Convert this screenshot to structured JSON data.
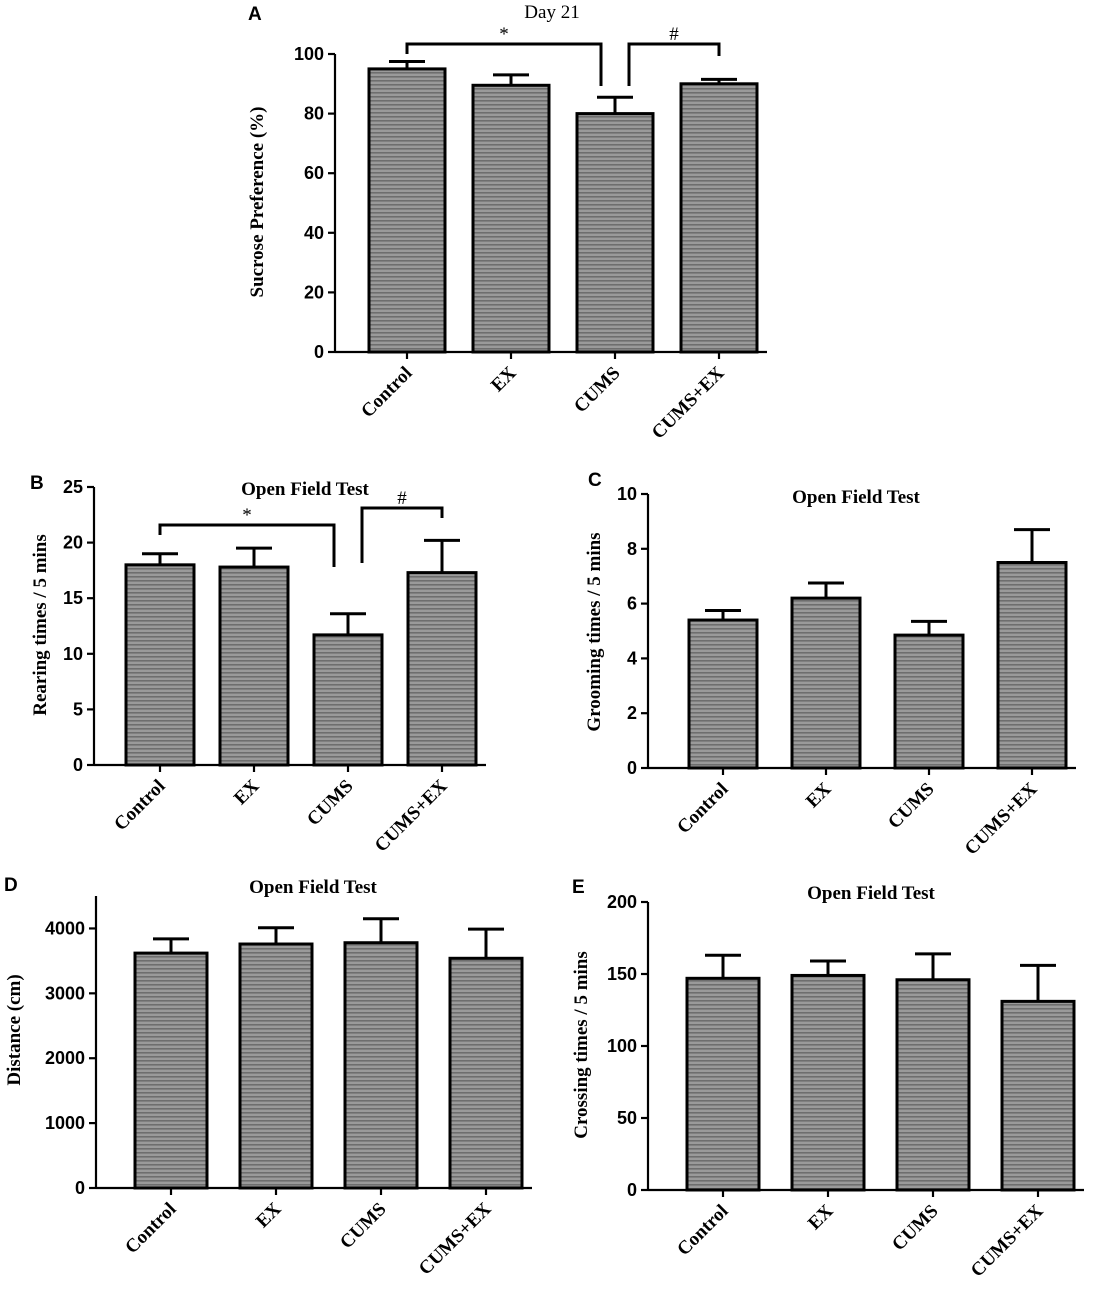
{
  "chart_data": [
    {
      "panel": "A",
      "type": "bar",
      "title": "Day 21",
      "ylabel": "Sucrose Preference (%)",
      "xlabel": "",
      "categories": [
        "Control",
        "EX",
        "CUMS",
        "CUMS+EX"
      ],
      "values": [
        95,
        89.5,
        80,
        90
      ],
      "errors": [
        2.5,
        3.5,
        5.5,
        1.5
      ],
      "ylim": [
        0,
        100
      ],
      "yticks": [
        0,
        20,
        40,
        60,
        80,
        100
      ],
      "significance": [
        {
          "from": 0,
          "to": 2,
          "label": "*"
        },
        {
          "from": 2,
          "to": 3,
          "label": "#"
        }
      ]
    },
    {
      "panel": "B",
      "type": "bar",
      "title": "Open Field Test",
      "ylabel": "Rearing times / 5 mins",
      "xlabel": "",
      "categories": [
        "Control",
        "EX",
        "CUMS",
        "CUMS+EX"
      ],
      "values": [
        18,
        17.8,
        11.7,
        17.3
      ],
      "errors": [
        1,
        1.7,
        1.9,
        2.9
      ],
      "ylim": [
        0,
        25
      ],
      "yticks": [
        0,
        5,
        10,
        15,
        20,
        25
      ],
      "significance": [
        {
          "from": 0,
          "to": 2,
          "label": "*"
        },
        {
          "from": 2,
          "to": 3,
          "label": "#"
        }
      ]
    },
    {
      "panel": "C",
      "type": "bar",
      "title": "Open Field Test",
      "ylabel": "Grooming times / 5 mins",
      "xlabel": "",
      "categories": [
        "Control",
        "EX",
        "CUMS",
        "CUMS+EX"
      ],
      "values": [
        5.4,
        6.2,
        4.85,
        7.5
      ],
      "errors": [
        0.35,
        0.55,
        0.5,
        1.2
      ],
      "ylim": [
        0,
        10
      ],
      "yticks": [
        0,
        2,
        4,
        6,
        8,
        10
      ],
      "significance": []
    },
    {
      "panel": "D",
      "type": "bar",
      "title": "Open Field Test",
      "ylabel": "Distance (cm)",
      "xlabel": "",
      "categories": [
        "Control",
        "EX",
        "CUMS",
        "CUMS+EX"
      ],
      "values": [
        3620,
        3760,
        3780,
        3540
      ],
      "errors": [
        220,
        250,
        370,
        450
      ],
      "ylim": [
        0,
        4500
      ],
      "yticks": [
        0,
        1000,
        2000,
        3000,
        4000
      ],
      "significance": []
    },
    {
      "panel": "E",
      "type": "bar",
      "title": "Open Field Test",
      "ylabel": "Crossing times / 5 mins",
      "xlabel": "",
      "categories": [
        "Control",
        "EX",
        "CUMS",
        "CUMS+EX"
      ],
      "values": [
        147,
        149,
        146,
        131
      ],
      "errors": [
        16,
        10,
        18,
        25
      ],
      "ylim": [
        0,
        200
      ],
      "yticks": [
        0,
        50,
        100,
        150,
        200
      ],
      "significance": []
    }
  ]
}
